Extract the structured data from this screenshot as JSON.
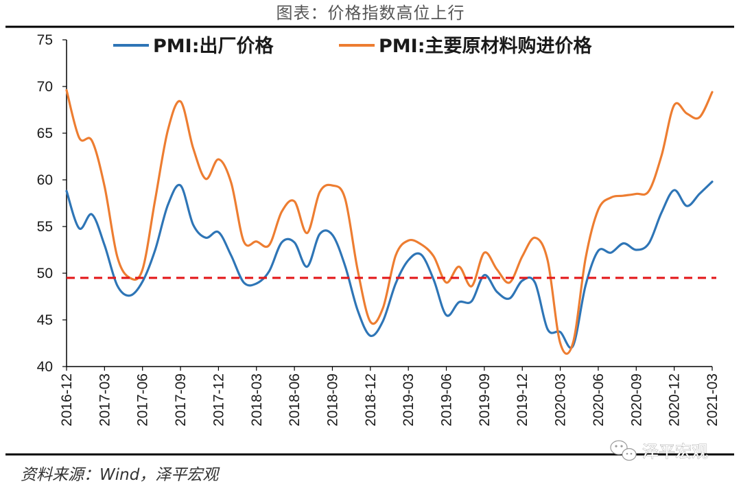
{
  "chart_data": {
    "type": "line",
    "title": "图表：价格指数高位上行",
    "source": "资料来源：Wind，泽平宏观",
    "watermark": "泽平宏观",
    "ylim": [
      40,
      75
    ],
    "yticks": [
      40,
      45,
      50,
      55,
      60,
      65,
      70,
      75
    ],
    "reference_line": {
      "value": 49.5,
      "color": "#e31a1c",
      "style": "dashed"
    },
    "x": [
      "2016-12",
      "2017-01",
      "2017-02",
      "2017-03",
      "2017-04",
      "2017-05",
      "2017-06",
      "2017-07",
      "2017-08",
      "2017-09",
      "2017-10",
      "2017-11",
      "2017-12",
      "2018-01",
      "2018-02",
      "2018-03",
      "2018-04",
      "2018-05",
      "2018-06",
      "2018-07",
      "2018-08",
      "2018-09",
      "2018-10",
      "2018-11",
      "2018-12",
      "2019-01",
      "2019-02",
      "2019-03",
      "2019-04",
      "2019-05",
      "2019-06",
      "2019-07",
      "2019-08",
      "2019-09",
      "2019-10",
      "2019-11",
      "2019-12",
      "2020-01",
      "2020-02",
      "2020-03",
      "2020-04",
      "2020-05",
      "2020-06",
      "2020-07",
      "2020-08",
      "2020-09",
      "2020-10",
      "2020-11",
      "2020-12",
      "2021-01",
      "2021-02",
      "2021-03"
    ],
    "xtick_labels": [
      "2016-12",
      "2017-03",
      "2017-06",
      "2017-09",
      "2017-12",
      "2018-03",
      "2018-06",
      "2018-09",
      "2018-12",
      "2019-03",
      "2019-06",
      "2019-09",
      "2019-12",
      "2020-03",
      "2020-06",
      "2020-09",
      "2020-12",
      "2021-03"
    ],
    "series": [
      {
        "name": "PMI:出厂价格",
        "color": "#2e75b6",
        "values": [
          58.8,
          54.8,
          56.3,
          53.0,
          48.7,
          47.6,
          49.1,
          52.5,
          57.3,
          59.4,
          55.2,
          53.8,
          54.4,
          51.9,
          49.0,
          48.9,
          50.2,
          53.3,
          53.3,
          50.7,
          54.2,
          54.1,
          50.8,
          46.0,
          43.3,
          44.9,
          48.9,
          51.4,
          52.0,
          49.3,
          45.5,
          46.9,
          47.0,
          49.8,
          48.0,
          47.3,
          49.2,
          49.0,
          44.0,
          43.7,
          42.2,
          48.7,
          52.4,
          52.2,
          53.2,
          52.5,
          53.2,
          56.5,
          58.9,
          57.2,
          58.5,
          59.8
        ]
      },
      {
        "name": "PMI:主要原材料购进价格",
        "color": "#ed7d31",
        "values": [
          69.6,
          64.5,
          64.2,
          59.3,
          51.8,
          49.5,
          50.4,
          57.9,
          65.3,
          68.4,
          63.4,
          60.1,
          62.2,
          59.7,
          53.4,
          53.4,
          53.0,
          56.6,
          57.7,
          54.3,
          58.7,
          59.4,
          58.0,
          50.3,
          44.8,
          46.3,
          51.9,
          53.5,
          53.1,
          51.8,
          49.0,
          50.7,
          48.6,
          52.2,
          50.4,
          49.0,
          51.8,
          53.8,
          51.4,
          42.5,
          42.5,
          51.6,
          56.8,
          58.1,
          58.3,
          58.5,
          58.8,
          62.6,
          68.0,
          67.1,
          66.7,
          69.4
        ]
      }
    ]
  }
}
